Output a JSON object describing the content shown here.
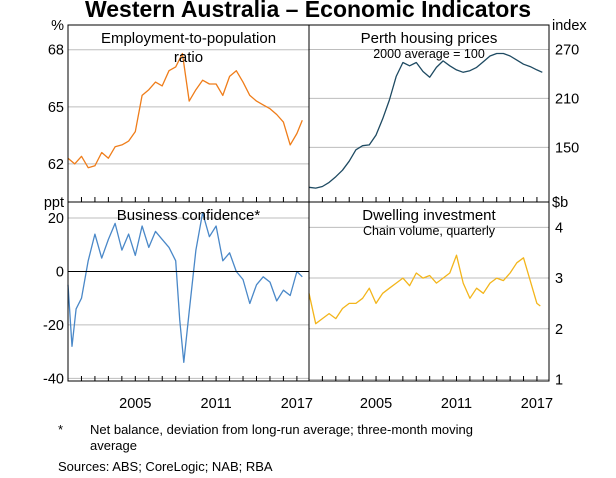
{
  "title": "Western Australia – Economic Indicators",
  "footnote_marker": "*",
  "footnote_line1": "Net balance, deviation from long-run average; three-month moving",
  "footnote_line2": "average",
  "sources": "Sources:   ABS; CoreLogic; NAB; RBA",
  "colors": {
    "orange": "#ef7d1a",
    "navy": "#1e4a62",
    "blue": "#4a88c8",
    "yellow": "#f3b51b"
  },
  "chart_data": [
    {
      "type": "line",
      "title": "Employment-to-population ratio",
      "title_line1": "Employment-to-population",
      "title_line2": "ratio",
      "unit": "%",
      "y_ticks": [
        62,
        65,
        68
      ],
      "ylim": [
        60,
        69.3
      ],
      "xlim": [
        2000.0,
        2017.9
      ],
      "x_ticks": [
        "2005",
        "2011",
        "2017"
      ],
      "series": [
        {
          "name": "Employment-to-population ratio",
          "color": "#ef7d1a",
          "x": [
            2000.0,
            2000.5,
            2001.0,
            2001.5,
            2002.0,
            2002.5,
            2003.0,
            2003.5,
            2004.0,
            2004.5,
            2005.0,
            2005.5,
            2006.0,
            2006.5,
            2007.0,
            2007.5,
            2008.0,
            2008.5,
            2009.0,
            2009.5,
            2010.0,
            2010.5,
            2011.0,
            2011.5,
            2012.0,
            2012.5,
            2013.0,
            2013.5,
            2014.0,
            2014.5,
            2015.0,
            2015.5,
            2016.0,
            2016.5,
            2017.0,
            2017.4
          ],
          "values": [
            62.3,
            62.0,
            62.4,
            61.8,
            61.9,
            62.6,
            62.3,
            62.9,
            63.0,
            63.2,
            63.7,
            65.6,
            65.9,
            66.3,
            66.1,
            66.9,
            67.1,
            67.8,
            65.3,
            65.9,
            66.4,
            66.2,
            66.2,
            65.6,
            66.6,
            66.9,
            66.3,
            65.6,
            65.3,
            65.1,
            64.9,
            64.6,
            64.2,
            63.0,
            63.6,
            64.3
          ]
        }
      ]
    },
    {
      "type": "line",
      "title": "Perth housing prices",
      "subtitle": "2000 average = 100",
      "unit": "index",
      "y_ticks": [
        150,
        210,
        270
      ],
      "ylim": [
        83,
        300
      ],
      "xlim": [
        2000.0,
        2017.9
      ],
      "x_ticks": [
        "2005",
        "2011",
        "2017"
      ],
      "series": [
        {
          "name": "Perth housing prices",
          "color": "#1e4a62",
          "x": [
            2000.0,
            2000.5,
            2001.0,
            2001.5,
            2002.0,
            2002.5,
            2003.0,
            2003.5,
            2004.0,
            2004.5,
            2005.0,
            2005.5,
            2006.0,
            2006.5,
            2007.0,
            2007.5,
            2008.0,
            2008.5,
            2009.0,
            2009.5,
            2010.0,
            2010.5,
            2011.0,
            2011.5,
            2012.0,
            2012.5,
            2013.0,
            2013.5,
            2014.0,
            2014.5,
            2015.0,
            2015.5,
            2016.0,
            2016.5,
            2017.0,
            2017.4
          ],
          "values": [
            101,
            100,
            102,
            107,
            114,
            122,
            133,
            147,
            152,
            153,
            165,
            185,
            208,
            237,
            254,
            250,
            254,
            243,
            236,
            248,
            256,
            250,
            245,
            242,
            244,
            248,
            255,
            262,
            265,
            265,
            262,
            257,
            252,
            249,
            245,
            242
          ]
        }
      ]
    },
    {
      "type": "line",
      "title": "Business confidence*",
      "unit": "ppt",
      "y_ticks": [
        20,
        0,
        -20,
        -40
      ],
      "ylim": [
        -41,
        26
      ],
      "xlim": [
        2000.0,
        2017.9
      ],
      "x_ticks": [
        "2005",
        "2011",
        "2017"
      ],
      "series": [
        {
          "name": "Business confidence",
          "color": "#4a88c8",
          "x": [
            2000.0,
            2000.3,
            2000.6,
            2001.0,
            2001.5,
            2002.0,
            2002.5,
            2003.0,
            2003.5,
            2004.0,
            2004.5,
            2005.0,
            2005.5,
            2006.0,
            2006.5,
            2007.0,
            2007.5,
            2008.0,
            2008.3,
            2008.6,
            2009.0,
            2009.5,
            2010.0,
            2010.5,
            2011.0,
            2011.5,
            2012.0,
            2012.5,
            2013.0,
            2013.5,
            2014.0,
            2014.5,
            2015.0,
            2015.5,
            2016.0,
            2016.5,
            2017.0,
            2017.4
          ],
          "values": [
            -5,
            -28,
            -14,
            -10,
            4,
            14,
            5,
            12,
            18,
            8,
            14,
            6,
            17,
            9,
            15,
            12,
            9,
            4,
            -18,
            -34,
            -15,
            8,
            22,
            13,
            17,
            4,
            7,
            0,
            -3,
            -12,
            -5,
            -2,
            -4,
            -11,
            -7,
            -9,
            0,
            -2
          ]
        }
      ]
    },
    {
      "type": "line",
      "title": "Dwelling investment",
      "subtitle": "Chain volume, quarterly",
      "unit": "$b",
      "y_ticks": [
        4,
        3,
        2,
        1
      ],
      "ylim": [
        0.97,
        4.5
      ],
      "xlim": [
        2000.0,
        2017.9
      ],
      "x_ticks": [
        "2005",
        "2011",
        "2017"
      ],
      "series": [
        {
          "name": "Dwelling investment",
          "color": "#f3b51b",
          "x": [
            2000.0,
            2000.5,
            2001.0,
            2001.5,
            2002.0,
            2002.5,
            2003.0,
            2003.5,
            2004.0,
            2004.5,
            2005.0,
            2005.5,
            2006.0,
            2006.5,
            2007.0,
            2007.5,
            2008.0,
            2008.5,
            2009.0,
            2009.5,
            2010.0,
            2010.5,
            2011.0,
            2011.5,
            2012.0,
            2012.5,
            2013.0,
            2013.5,
            2014.0,
            2014.5,
            2015.0,
            2015.5,
            2016.0,
            2016.5,
            2017.0,
            2017.25
          ],
          "values": [
            2.7,
            2.1,
            2.2,
            2.3,
            2.2,
            2.4,
            2.5,
            2.5,
            2.6,
            2.8,
            2.5,
            2.7,
            2.8,
            2.9,
            3.0,
            2.85,
            3.1,
            3.0,
            3.05,
            2.9,
            3.0,
            3.1,
            3.45,
            2.9,
            2.6,
            2.8,
            2.7,
            2.9,
            3.0,
            2.95,
            3.1,
            3.3,
            3.4,
            2.95,
            2.5,
            2.45
          ]
        }
      ]
    }
  ]
}
